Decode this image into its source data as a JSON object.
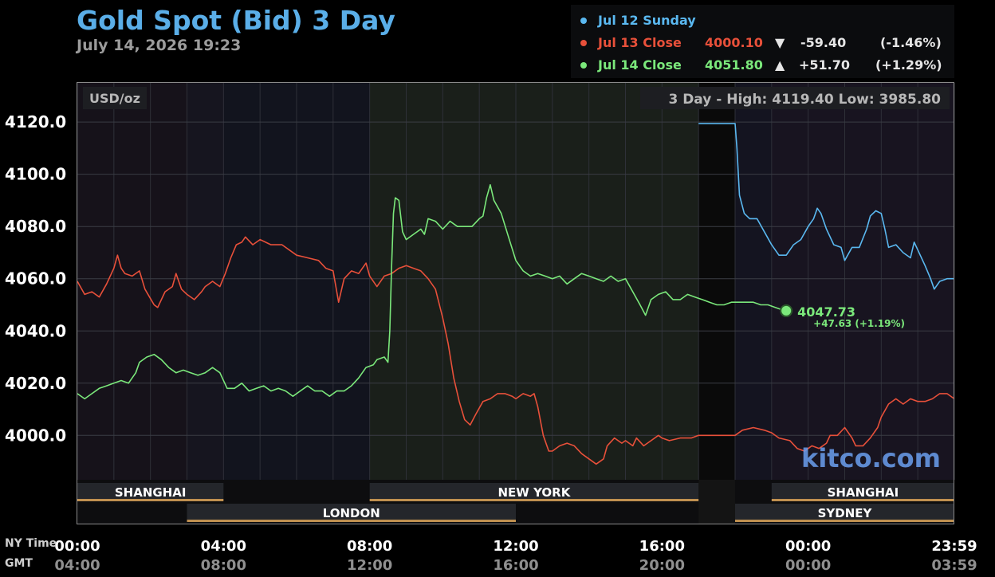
{
  "header": {
    "title": "Gold Spot (Bid) 3 Day",
    "datetime": "July 14, 2026 19:23"
  },
  "legend": [
    {
      "label": "Jul 12 Sunday",
      "close": "",
      "arrow": "",
      "change": "",
      "pct": "",
      "color": "#5ab8f0"
    },
    {
      "label": "Jul 13 Close",
      "close": "4000.10",
      "arrow": "▼",
      "change": "-59.40",
      "pct": "(-1.46%)",
      "color": "#e8503a"
    },
    {
      "label": "Jul 14 Close",
      "close": "4051.80",
      "arrow": "▲",
      "change": "+51.70",
      "pct": "(+1.29%)",
      "color": "#7be87b"
    }
  ],
  "chart_data": {
    "type": "line",
    "unit_label": "USD/oz",
    "range_label": "3 Day - High: 4119.40  Low: 3985.80",
    "ylim": [
      3983,
      4135
    ],
    "yticks": [
      "4000.0",
      "4020.0",
      "4040.0",
      "4060.0",
      "4080.0",
      "4100.0",
      "4120.0"
    ],
    "xlim": [
      0,
      24
    ],
    "xaxis": {
      "row1_label": "NY Time",
      "row2_label": "GMT",
      "ticks": [
        {
          "x": 0,
          "ny": "00:00",
          "gmt": "04:00"
        },
        {
          "x": 4,
          "ny": "04:00",
          "gmt": "08:00"
        },
        {
          "x": 8,
          "ny": "08:00",
          "gmt": "12:00"
        },
        {
          "x": 12,
          "ny": "12:00",
          "gmt": "16:00"
        },
        {
          "x": 16,
          "ny": "16:00",
          "gmt": "20:00"
        },
        {
          "x": 20,
          "ny": "00:00",
          "gmt": "00:00"
        },
        {
          "x": 24,
          "ny": "23:59",
          "gmt": "03:59"
        }
      ]
    },
    "sessions": [
      {
        "name": "SHANGHAI",
        "start": 0,
        "end": 4,
        "row": 1
      },
      {
        "name": "NEW YORK",
        "start": 8,
        "end": 17,
        "row": 1
      },
      {
        "name": "SHANGHAI",
        "start": 19,
        "end": 24,
        "row": 1
      },
      {
        "name": "LONDON",
        "start": 3,
        "end": 12,
        "row": 2
      },
      {
        "name": "SYDNEY",
        "start": 18,
        "end": 24,
        "row": 2
      }
    ],
    "current": {
      "x": 19.4,
      "value": "4047.73",
      "change": "+47.63 (+1.19%)"
    },
    "watermark": "kitco.com",
    "series": [
      {
        "name": "Jul 12 Sunday",
        "color": "#5ab8f0",
        "points": [
          [
            17.0,
            4119.4
          ],
          [
            18.0,
            4119.4
          ],
          [
            18.05,
            4110
          ],
          [
            18.12,
            4092
          ],
          [
            18.25,
            4085
          ],
          [
            18.4,
            4083
          ],
          [
            18.6,
            4083
          ],
          [
            18.8,
            4078
          ],
          [
            19.0,
            4073
          ],
          [
            19.2,
            4069
          ],
          [
            19.4,
            4069
          ],
          [
            19.6,
            4073
          ],
          [
            19.8,
            4075
          ],
          [
            20.0,
            4080
          ],
          [
            20.15,
            4083
          ],
          [
            20.25,
            4087
          ],
          [
            20.35,
            4085
          ],
          [
            20.5,
            4079
          ],
          [
            20.7,
            4073
          ],
          [
            20.9,
            4072
          ],
          [
            21.0,
            4067
          ],
          [
            21.2,
            4072
          ],
          [
            21.4,
            4072
          ],
          [
            21.6,
            4079
          ],
          [
            21.7,
            4084
          ],
          [
            21.85,
            4086
          ],
          [
            22.0,
            4085
          ],
          [
            22.1,
            4079
          ],
          [
            22.2,
            4072
          ],
          [
            22.4,
            4073
          ],
          [
            22.6,
            4070
          ],
          [
            22.8,
            4068
          ],
          [
            22.9,
            4074
          ],
          [
            23.0,
            4071
          ],
          [
            23.2,
            4065
          ],
          [
            23.35,
            4060
          ],
          [
            23.45,
            4056
          ],
          [
            23.6,
            4059
          ],
          [
            23.8,
            4060
          ],
          [
            24.0,
            4060
          ]
        ]
      },
      {
        "name": "Jul 13 Close",
        "color": "#e8503a",
        "points": [
          [
            0.0,
            4059
          ],
          [
            0.2,
            4054
          ],
          [
            0.4,
            4055
          ],
          [
            0.6,
            4053
          ],
          [
            0.8,
            4058
          ],
          [
            1.0,
            4064
          ],
          [
            1.1,
            4069
          ],
          [
            1.2,
            4064
          ],
          [
            1.3,
            4062
          ],
          [
            1.5,
            4061
          ],
          [
            1.7,
            4063
          ],
          [
            1.85,
            4056
          ],
          [
            2.1,
            4050
          ],
          [
            2.2,
            4049
          ],
          [
            2.4,
            4055
          ],
          [
            2.6,
            4057
          ],
          [
            2.7,
            4062
          ],
          [
            2.85,
            4056
          ],
          [
            3.0,
            4054
          ],
          [
            3.2,
            4052
          ],
          [
            3.4,
            4055
          ],
          [
            3.5,
            4057
          ],
          [
            3.7,
            4059
          ],
          [
            3.9,
            4057
          ],
          [
            4.05,
            4062
          ],
          [
            4.2,
            4068
          ],
          [
            4.35,
            4073
          ],
          [
            4.5,
            4074
          ],
          [
            4.6,
            4076
          ],
          [
            4.8,
            4073
          ],
          [
            5.0,
            4075
          ],
          [
            5.3,
            4073
          ],
          [
            5.6,
            4073
          ],
          [
            6.0,
            4069
          ],
          [
            6.3,
            4068
          ],
          [
            6.6,
            4067
          ],
          [
            6.8,
            4064
          ],
          [
            7.0,
            4063
          ],
          [
            7.15,
            4051
          ],
          [
            7.3,
            4060
          ],
          [
            7.5,
            4063
          ],
          [
            7.7,
            4062
          ],
          [
            7.9,
            4066
          ],
          [
            8.0,
            4061
          ],
          [
            8.2,
            4057
          ],
          [
            8.4,
            4061
          ],
          [
            8.6,
            4062
          ],
          [
            8.8,
            4064
          ],
          [
            9.0,
            4065
          ],
          [
            9.2,
            4064
          ],
          [
            9.4,
            4063
          ],
          [
            9.6,
            4060
          ],
          [
            9.8,
            4056
          ],
          [
            10.0,
            4045
          ],
          [
            10.15,
            4035
          ],
          [
            10.3,
            4022
          ],
          [
            10.45,
            4013
          ],
          [
            10.6,
            4006
          ],
          [
            10.75,
            4004
          ],
          [
            10.9,
            4008
          ],
          [
            11.1,
            4013
          ],
          [
            11.3,
            4014
          ],
          [
            11.5,
            4016
          ],
          [
            11.7,
            4016
          ],
          [
            11.9,
            4015
          ],
          [
            12.0,
            4014
          ],
          [
            12.2,
            4016
          ],
          [
            12.4,
            4015
          ],
          [
            12.5,
            4016
          ],
          [
            12.6,
            4011
          ],
          [
            12.75,
            4000
          ],
          [
            12.9,
            3994
          ],
          [
            13.0,
            3994
          ],
          [
            13.2,
            3996
          ],
          [
            13.4,
            3997
          ],
          [
            13.6,
            3996
          ],
          [
            13.8,
            3993
          ],
          [
            14.0,
            3991
          ],
          [
            14.2,
            3989
          ],
          [
            14.4,
            3991
          ],
          [
            14.5,
            3996
          ],
          [
            14.7,
            3999
          ],
          [
            14.9,
            3997
          ],
          [
            15.0,
            3998
          ],
          [
            15.2,
            3996
          ],
          [
            15.3,
            3999
          ],
          [
            15.5,
            3996
          ],
          [
            15.7,
            3998
          ],
          [
            15.9,
            4000
          ],
          [
            16.0,
            3999
          ],
          [
            16.2,
            3998
          ],
          [
            16.5,
            3999
          ],
          [
            16.8,
            3999
          ],
          [
            17.0,
            4000
          ],
          [
            17.5,
            4000
          ],
          [
            18.0,
            4000
          ],
          [
            18.2,
            4002
          ],
          [
            18.5,
            4003
          ],
          [
            18.8,
            4002
          ],
          [
            19.0,
            4001
          ],
          [
            19.2,
            3999
          ],
          [
            19.5,
            3998
          ],
          [
            19.7,
            3995
          ],
          [
            19.9,
            3994
          ],
          [
            20.1,
            3996
          ],
          [
            20.3,
            3995
          ],
          [
            20.5,
            3997
          ],
          [
            20.6,
            4000
          ],
          [
            20.8,
            4000
          ],
          [
            21.0,
            4003
          ],
          [
            21.2,
            3999
          ],
          [
            21.3,
            3996
          ],
          [
            21.5,
            3996
          ],
          [
            21.7,
            3999
          ],
          [
            21.9,
            4003
          ],
          [
            22.0,
            4007
          ],
          [
            22.2,
            4012
          ],
          [
            22.4,
            4014
          ],
          [
            22.6,
            4012
          ],
          [
            22.8,
            4014
          ],
          [
            23.0,
            4013
          ],
          [
            23.2,
            4013
          ],
          [
            23.4,
            4014
          ],
          [
            23.6,
            4016
          ],
          [
            23.8,
            4016
          ],
          [
            24.0,
            4014
          ]
        ]
      },
      {
        "name": "Jul 14 Close",
        "color": "#7be87b",
        "points": [
          [
            0.0,
            4016
          ],
          [
            0.2,
            4014
          ],
          [
            0.4,
            4016
          ],
          [
            0.6,
            4018
          ],
          [
            0.8,
            4019
          ],
          [
            1.0,
            4020
          ],
          [
            1.2,
            4021
          ],
          [
            1.4,
            4020
          ],
          [
            1.6,
            4024
          ],
          [
            1.7,
            4028
          ],
          [
            1.9,
            4030
          ],
          [
            2.1,
            4031
          ],
          [
            2.3,
            4029
          ],
          [
            2.5,
            4026
          ],
          [
            2.7,
            4024
          ],
          [
            2.9,
            4025
          ],
          [
            3.1,
            4024
          ],
          [
            3.3,
            4023
          ],
          [
            3.5,
            4024
          ],
          [
            3.7,
            4026
          ],
          [
            3.9,
            4024
          ],
          [
            4.1,
            4018
          ],
          [
            4.3,
            4018
          ],
          [
            4.5,
            4020
          ],
          [
            4.7,
            4017
          ],
          [
            4.9,
            4018
          ],
          [
            5.1,
            4019
          ],
          [
            5.3,
            4017
          ],
          [
            5.5,
            4018
          ],
          [
            5.7,
            4017
          ],
          [
            5.9,
            4015
          ],
          [
            6.1,
            4017
          ],
          [
            6.3,
            4019
          ],
          [
            6.5,
            4017
          ],
          [
            6.7,
            4017
          ],
          [
            6.9,
            4015
          ],
          [
            7.1,
            4017
          ],
          [
            7.3,
            4017
          ],
          [
            7.5,
            4019
          ],
          [
            7.7,
            4022
          ],
          [
            7.9,
            4026
          ],
          [
            8.1,
            4027
          ],
          [
            8.2,
            4029
          ],
          [
            8.4,
            4030
          ],
          [
            8.5,
            4028
          ],
          [
            8.55,
            4040
          ],
          [
            8.6,
            4065
          ],
          [
            8.65,
            4085
          ],
          [
            8.7,
            4091
          ],
          [
            8.8,
            4090
          ],
          [
            8.9,
            4078
          ],
          [
            9.0,
            4075
          ],
          [
            9.2,
            4077
          ],
          [
            9.4,
            4079
          ],
          [
            9.5,
            4077
          ],
          [
            9.6,
            4083
          ],
          [
            9.8,
            4082
          ],
          [
            10.0,
            4079
          ],
          [
            10.2,
            4082
          ],
          [
            10.4,
            4080
          ],
          [
            10.6,
            4080
          ],
          [
            10.8,
            4080
          ],
          [
            11.0,
            4083
          ],
          [
            11.1,
            4084
          ],
          [
            11.2,
            4091
          ],
          [
            11.3,
            4096
          ],
          [
            11.4,
            4090
          ],
          [
            11.6,
            4085
          ],
          [
            11.8,
            4076
          ],
          [
            12.0,
            4067
          ],
          [
            12.2,
            4063
          ],
          [
            12.4,
            4061
          ],
          [
            12.6,
            4062
          ],
          [
            12.8,
            4061
          ],
          [
            13.0,
            4060
          ],
          [
            13.2,
            4061
          ],
          [
            13.4,
            4058
          ],
          [
            13.6,
            4060
          ],
          [
            13.8,
            4062
          ],
          [
            14.0,
            4061
          ],
          [
            14.2,
            4060
          ],
          [
            14.4,
            4059
          ],
          [
            14.6,
            4061
          ],
          [
            14.8,
            4059
          ],
          [
            15.0,
            4060
          ],
          [
            15.2,
            4055
          ],
          [
            15.4,
            4050
          ],
          [
            15.55,
            4046
          ],
          [
            15.7,
            4052
          ],
          [
            15.9,
            4054
          ],
          [
            16.1,
            4055
          ],
          [
            16.3,
            4052
          ],
          [
            16.5,
            4052
          ],
          [
            16.7,
            4054
          ],
          [
            16.9,
            4053
          ],
          [
            17.1,
            4052
          ],
          [
            17.3,
            4051
          ],
          [
            17.5,
            4050
          ],
          [
            17.7,
            4050
          ],
          [
            17.9,
            4051
          ],
          [
            18.0,
            4051
          ],
          [
            18.2,
            4051
          ],
          [
            18.4,
            4051
          ],
          [
            18.5,
            4051
          ],
          [
            18.7,
            4050
          ],
          [
            18.9,
            4050
          ],
          [
            19.1,
            4049
          ],
          [
            19.3,
            4048
          ],
          [
            19.4,
            4047.73
          ]
        ]
      }
    ]
  }
}
